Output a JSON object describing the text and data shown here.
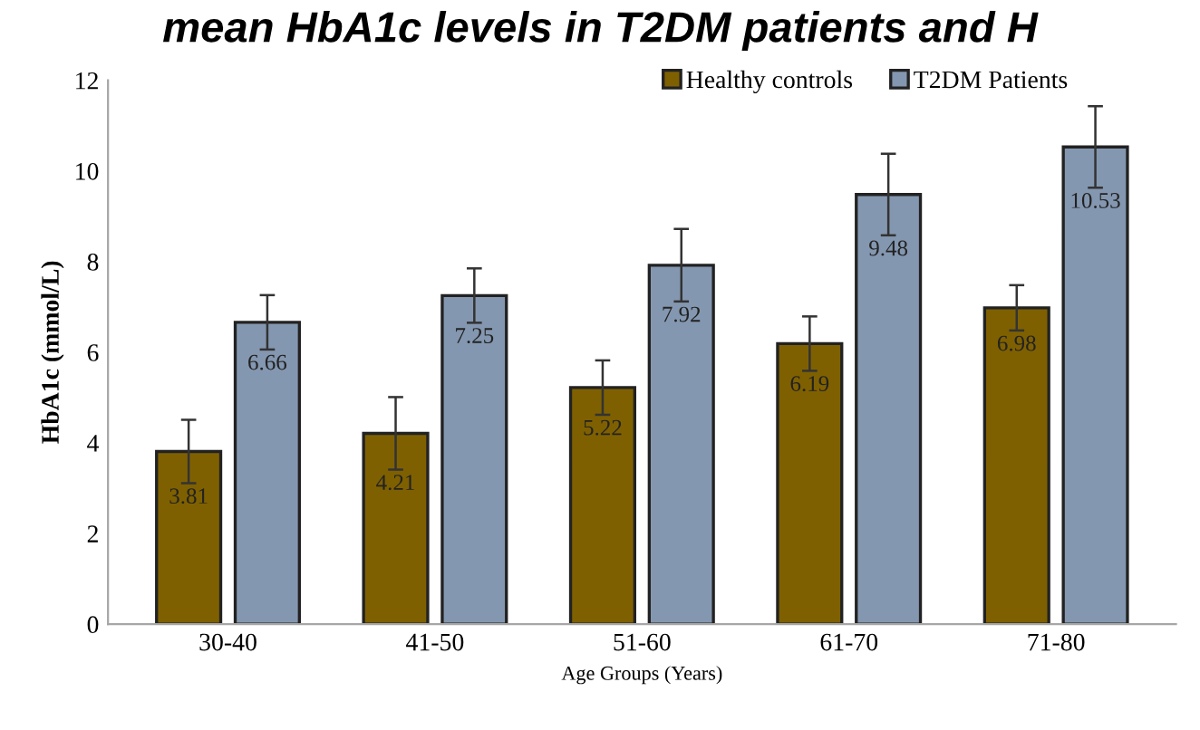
{
  "chart_data": {
    "type": "bar",
    "title": "mean HbA1c levels in T2DM patients and H",
    "xlabel": "Age Groups (Years)",
    "ylabel": "HbA1c (mmol/L)",
    "categories": [
      "30-40",
      "41-50",
      "51-60",
      "61-70",
      "71-80"
    ],
    "series": [
      {
        "name": "Healthy controls",
        "color": "#7f6000",
        "values": [
          3.81,
          4.21,
          5.22,
          6.19,
          6.98
        ],
        "errors": [
          0.7,
          0.8,
          0.6,
          0.6,
          0.5
        ]
      },
      {
        "name": "T2DM Patients",
        "color": "#8497b0",
        "values": [
          6.66,
          7.25,
          7.92,
          9.48,
          10.53
        ],
        "errors": [
          0.6,
          0.6,
          0.8,
          0.9,
          0.9
        ]
      }
    ],
    "ylim": [
      0,
      12
    ],
    "yticks": [
      0,
      2,
      4,
      6,
      8,
      10,
      12
    ],
    "grid": false,
    "legend": "top right",
    "data_labels": true
  }
}
